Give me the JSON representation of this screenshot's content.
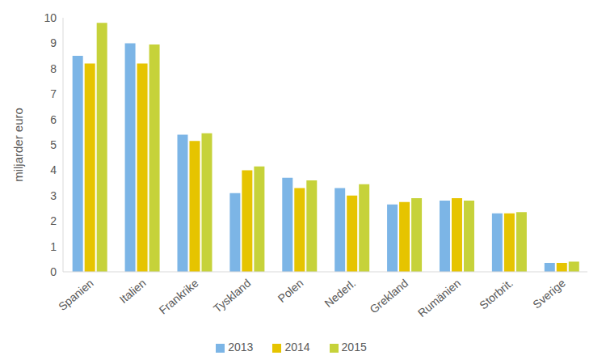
{
  "chart_data": {
    "type": "bar",
    "y_label": "miljarder euro",
    "categories": [
      "Spanien",
      "Italien",
      "Frankrike",
      "Tyskland",
      "Polen",
      "Nederl.",
      "Grekland",
      "Rumänien",
      "Storbrit.",
      "Sverige"
    ],
    "series": [
      {
        "name": "2013",
        "color": "#7cb5e6",
        "values": [
          8.5,
          9.0,
          5.4,
          3.1,
          3.7,
          3.3,
          2.65,
          2.8,
          2.3,
          0.35
        ]
      },
      {
        "name": "2014",
        "color": "#e6c400",
        "values": [
          8.2,
          8.2,
          5.15,
          4.0,
          3.3,
          3.0,
          2.75,
          2.9,
          2.3,
          0.35
        ]
      },
      {
        "name": "2015",
        "color": "#c6d23a",
        "values": [
          9.8,
          8.95,
          5.45,
          4.15,
          3.6,
          3.45,
          2.9,
          2.8,
          2.35,
          0.4
        ]
      }
    ],
    "ylim": [
      0,
      10
    ],
    "yticks": [
      0,
      1,
      2,
      3,
      4,
      5,
      6,
      7,
      8,
      9,
      10
    ],
    "grid": false,
    "legend": "bottom"
  }
}
